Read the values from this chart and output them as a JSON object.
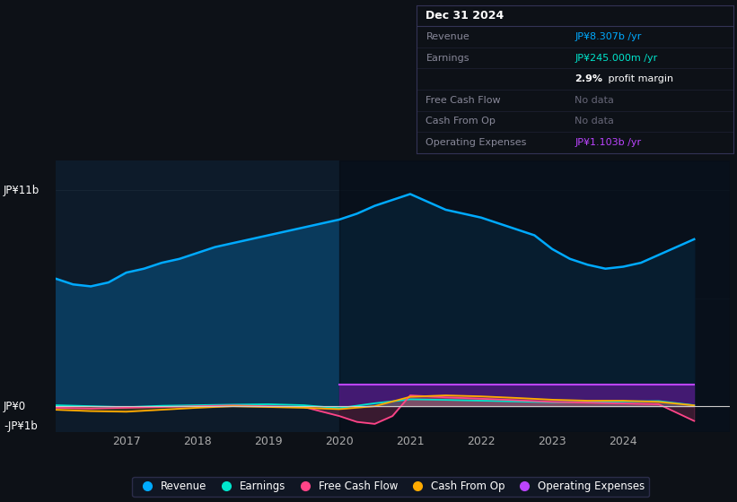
{
  "bg_color": "#0d1117",
  "chart_bg": "#0d1b2a",
  "ylabel_top": "JP¥11b",
  "ylabel_zero": "JP¥0",
  "ylabel_neg": "-JP¥1b",
  "ylim": [
    -1.3,
    12.5
  ],
  "xlim": [
    2016.0,
    2025.5
  ],
  "revenue_color": "#00aaff",
  "revenue_fill": "#0a3a5c",
  "earnings_color": "#00e5cc",
  "fcf_color": "#ff4488",
  "cashfromop_color": "#ffaa00",
  "opex_color": "#bb44ff",
  "opex_fill": "#4a1a7a",
  "shaded_region_start": 2020.0,
  "shaded_region_color": "#050a12",
  "shaded_region_alpha": 0.6,
  "legend_items": [
    "Revenue",
    "Earnings",
    "Free Cash Flow",
    "Cash From Op",
    "Operating Expenses"
  ],
  "legend_colors": [
    "#00aaff",
    "#00e5cc",
    "#ff4488",
    "#ffaa00",
    "#bb44ff"
  ],
  "tooltip_bg": "#0d1117",
  "tooltip_border": "#333355",
  "x_ticks": [
    2017,
    2018,
    2019,
    2020,
    2021,
    2022,
    2023,
    2024
  ],
  "grid_color": "#1e2d3d",
  "zero_line_color": "#cccccc",
  "revenue_data_x": [
    2016.0,
    2016.25,
    2016.5,
    2016.75,
    2017.0,
    2017.25,
    2017.5,
    2017.75,
    2018.0,
    2018.25,
    2018.5,
    2018.75,
    2019.0,
    2019.25,
    2019.5,
    2019.75,
    2020.0,
    2020.25,
    2020.5,
    2020.75,
    2021.0,
    2021.25,
    2021.5,
    2021.75,
    2022.0,
    2022.25,
    2022.5,
    2022.75,
    2023.0,
    2023.25,
    2023.5,
    2023.75,
    2024.0,
    2024.25,
    2024.5,
    2024.75,
    2025.0
  ],
  "revenue_data_y": [
    6.5,
    6.2,
    6.1,
    6.3,
    6.8,
    7.0,
    7.3,
    7.5,
    7.8,
    8.1,
    8.3,
    8.5,
    8.7,
    8.9,
    9.1,
    9.3,
    9.5,
    9.8,
    10.2,
    10.5,
    10.8,
    10.4,
    10.0,
    9.8,
    9.6,
    9.3,
    9.0,
    8.7,
    8.0,
    7.5,
    7.2,
    7.0,
    7.1,
    7.3,
    7.7,
    8.1,
    8.5
  ],
  "earnings_data_x": [
    2016.0,
    2016.5,
    2017.0,
    2017.5,
    2018.0,
    2018.5,
    2019.0,
    2019.5,
    2020.0,
    2020.5,
    2021.0,
    2021.5,
    2022.0,
    2022.5,
    2023.0,
    2023.5,
    2024.0,
    2024.5,
    2025.0
  ],
  "earnings_data_y": [
    0.05,
    0.0,
    -0.05,
    0.02,
    0.05,
    0.08,
    0.1,
    0.05,
    -0.1,
    0.15,
    0.35,
    0.32,
    0.28,
    0.24,
    0.2,
    0.22,
    0.24,
    0.26,
    0.05
  ],
  "fcf_data_x": [
    2016.0,
    2016.5,
    2017.0,
    2017.5,
    2018.0,
    2018.5,
    2019.0,
    2019.5,
    2020.0,
    2020.25,
    2020.5,
    2020.75,
    2021.0,
    2021.5,
    2022.0,
    2022.5,
    2023.0,
    2023.5,
    2024.0,
    2024.5,
    2025.0
  ],
  "fcf_data_y": [
    -0.08,
    -0.12,
    -0.08,
    -0.04,
    0.0,
    0.04,
    0.0,
    -0.04,
    -0.5,
    -0.8,
    -0.9,
    -0.5,
    0.55,
    0.45,
    0.38,
    0.3,
    0.22,
    0.18,
    0.14,
    0.1,
    -0.75
  ],
  "cashfromop_data_x": [
    2016.0,
    2016.5,
    2017.0,
    2017.5,
    2018.0,
    2018.5,
    2019.0,
    2019.5,
    2020.0,
    2020.5,
    2021.0,
    2021.5,
    2022.0,
    2022.5,
    2023.0,
    2023.5,
    2024.0,
    2024.5,
    2025.0
  ],
  "cashfromop_data_y": [
    -0.18,
    -0.25,
    -0.28,
    -0.18,
    -0.08,
    0.0,
    -0.04,
    -0.08,
    -0.15,
    0.0,
    0.48,
    0.55,
    0.5,
    0.42,
    0.33,
    0.28,
    0.28,
    0.22,
    0.04
  ],
  "opex_data_x": [
    2020.0,
    2020.25,
    2020.5,
    2020.75,
    2021.0,
    2021.25,
    2021.5,
    2021.75,
    2022.0,
    2022.25,
    2022.5,
    2022.75,
    2023.0,
    2023.25,
    2023.5,
    2023.75,
    2024.0,
    2024.25,
    2024.5,
    2024.75,
    2025.0
  ],
  "opex_data_y": [
    1.1,
    1.1,
    1.1,
    1.1,
    1.1,
    1.1,
    1.1,
    1.1,
    1.1,
    1.1,
    1.1,
    1.1,
    1.1,
    1.1,
    1.1,
    1.1,
    1.1,
    1.1,
    1.1,
    1.1,
    1.1
  ]
}
